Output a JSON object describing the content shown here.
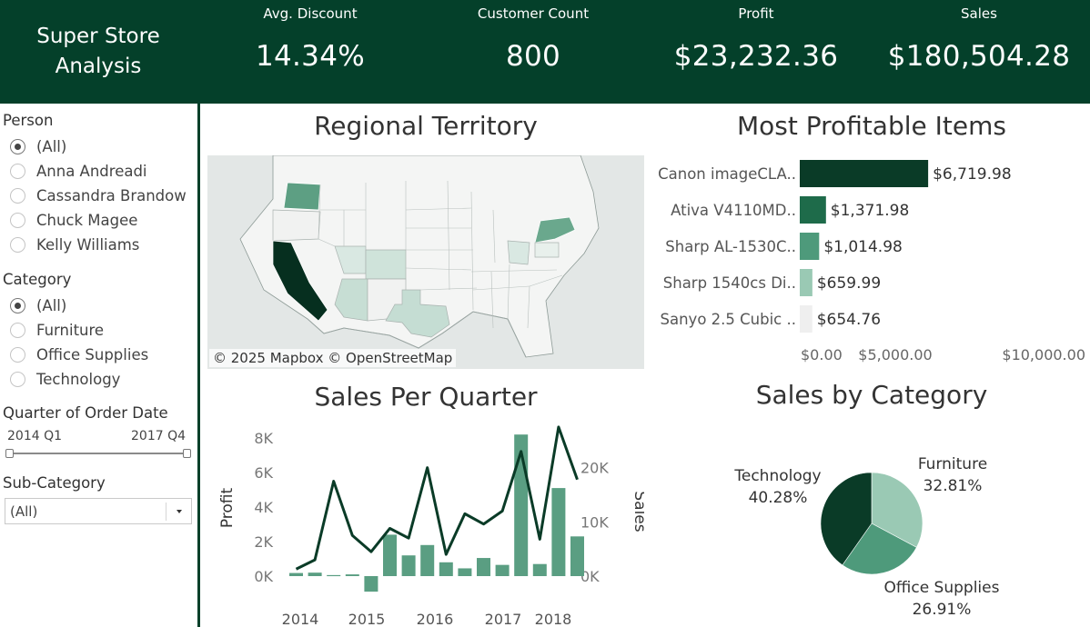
{
  "header": {
    "title_line1": "Super Store",
    "title_line2": "Analysis",
    "kpis": [
      {
        "label": "Avg. Discount",
        "value": "14.34%"
      },
      {
        "label": "Customer Count",
        "value": "800"
      },
      {
        "label": "Profit",
        "value": "$23,232.36"
      },
      {
        "label": "Sales",
        "value": "$180,504.28"
      }
    ]
  },
  "filters": {
    "person": {
      "title": "Person",
      "options": [
        "(All)",
        "Anna Andreadi",
        "Cassandra Brandow",
        "Chuck Magee",
        "Kelly Williams"
      ],
      "selected": "(All)"
    },
    "category": {
      "title": "Category",
      "options": [
        "(All)",
        "Furniture",
        "Office Supplies",
        "Technology"
      ],
      "selected": "(All)"
    },
    "quarter": {
      "title": "Quarter of Order Date",
      "start": "2014 Q1",
      "end": "2017 Q4"
    },
    "subcategory": {
      "title": "Sub-Category",
      "value": "(All)"
    }
  },
  "panels": {
    "map_title": "Regional Territory",
    "map_attribution": "© 2025 Mapbox © OpenStreetMap",
    "profitable_title": "Most Profitable Items",
    "quarter_title": "Sales Per Quarter",
    "category_title": "Sales by Category"
  },
  "colors": {
    "brand_dark": "#04402a",
    "green_1": "#0a3b27",
    "green_2": "#1e6b4a",
    "green_3": "#4e9a7b",
    "green_4": "#9ac9b4",
    "green_5": "#efefef",
    "bar_quarter": "#5a9e82"
  },
  "chart_data": [
    {
      "type": "bar",
      "orientation": "horizontal",
      "categories": [
        "Canon imageCLA..",
        "Ativa V4110MD..",
        "Sharp AL-1530C..",
        "Sharp 1540cs Di..",
        "Sanyo 2.5 Cubic .."
      ],
      "values": [
        6719.98,
        1371.98,
        1014.98,
        659.99,
        654.76
      ],
      "data_labels": [
        "$6,719.98",
        "$1,371.98",
        "$1,014.98",
        "$659.99",
        "$654.76"
      ],
      "x_ticks": [
        "$0.00",
        "$5,000.00",
        "$10,000.00"
      ],
      "xlim": [
        0,
        10000
      ],
      "title": "Most Profitable Items"
    },
    {
      "type": "bar",
      "combined_with": "line",
      "x_tick_labels": [
        "2014",
        "2015",
        "2016",
        "2017",
        "2018"
      ],
      "profit_bars": [
        180,
        200,
        60,
        100,
        -900,
        2400,
        1200,
        1800,
        800,
        450,
        1050,
        650,
        8200,
        700,
        5100,
        2300
      ],
      "sales_line": [
        1300,
        3000,
        17500,
        7500,
        4500,
        8800,
        7000,
        20000,
        4000,
        11500,
        9600,
        12000,
        23000,
        6800,
        27500,
        17800
      ],
      "y_left_label": "Profit",
      "y_left_ticks": [
        "0K",
        "2K",
        "4K",
        "6K",
        "8K"
      ],
      "y_left_range": [
        0,
        8000
      ],
      "y_right_label": "Sales",
      "y_right_ticks": [
        "0K",
        "10K",
        "20K"
      ],
      "y_right_range": [
        0,
        27000
      ],
      "title": "Sales Per Quarter"
    },
    {
      "type": "pie",
      "slices": [
        {
          "label": "Furniture",
          "percent_label": "32.81%",
          "value": 32.81
        },
        {
          "label": "Office Supplies",
          "percent_label": "26.91%",
          "value": 26.91
        },
        {
          "label": "Technology",
          "percent_label": "40.28%",
          "value": 40.28
        }
      ],
      "title": "Sales by Category"
    }
  ]
}
